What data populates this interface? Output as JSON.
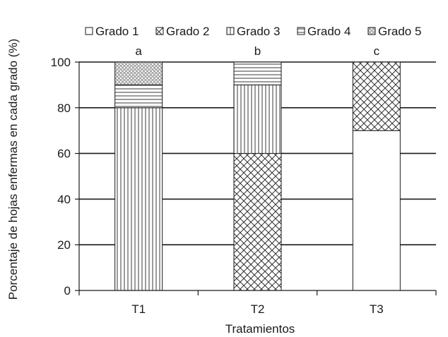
{
  "chart_data": {
    "type": "bar",
    "stacked": true,
    "title": "",
    "xlabel": "Tratamientos",
    "ylabel": "Porcentaje de hojas enfermas en cada grado (%)",
    "ylim": [
      0,
      100
    ],
    "yticks": [
      0,
      20,
      40,
      60,
      80,
      100
    ],
    "grid": true,
    "legend_position": "top",
    "categories": [
      "T1",
      "T2",
      "T3"
    ],
    "significance_letters": [
      "a",
      "b",
      "c"
    ],
    "series": [
      {
        "name": "Grado 1",
        "pattern": "blank",
        "values": [
          0,
          0,
          70
        ]
      },
      {
        "name": "Grado 2",
        "pattern": "crosshatch",
        "values": [
          0,
          60,
          30
        ]
      },
      {
        "name": "Grado 3",
        "pattern": "vertical",
        "values": [
          80,
          30,
          0
        ]
      },
      {
        "name": "Grado 4",
        "pattern": "horizontal",
        "values": [
          10,
          10,
          0
        ]
      },
      {
        "name": "Grado 5",
        "pattern": "dots",
        "values": [
          10,
          0,
          0
        ]
      }
    ],
    "colors": {
      "line": "#1a1a1a",
      "fill": "#ffffff",
      "pattern": "#555555"
    }
  }
}
